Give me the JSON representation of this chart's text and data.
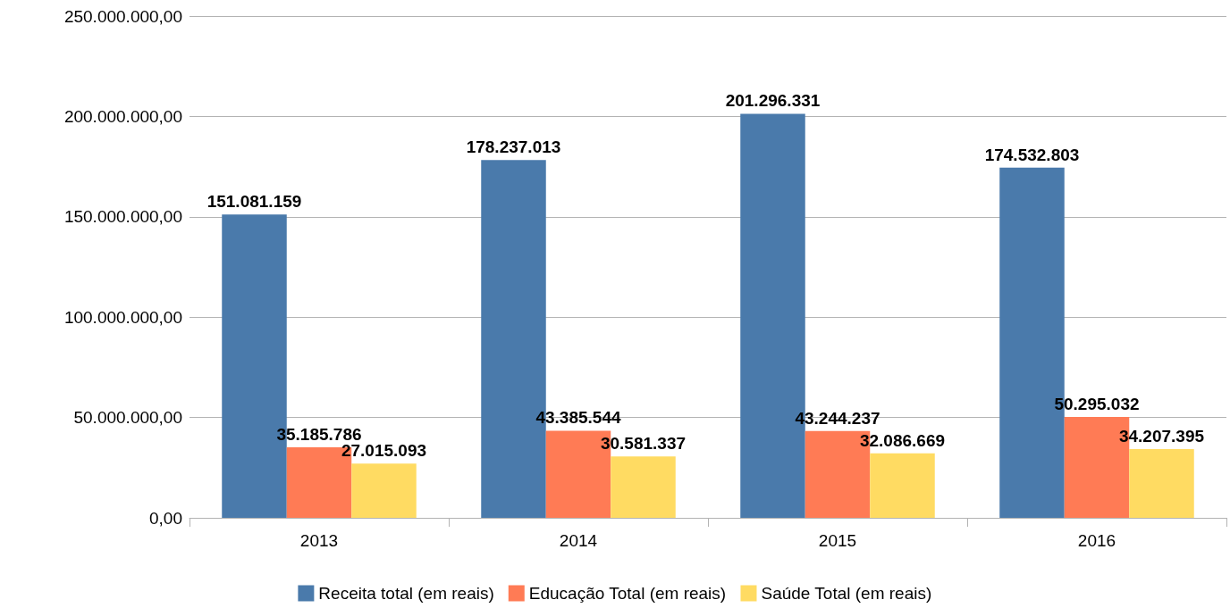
{
  "chart_data": {
    "type": "bar",
    "categories": [
      "2013",
      "2014",
      "2015",
      "2016"
    ],
    "series": [
      {
        "name": "Receita total (em reais)",
        "color": "#4a7aab",
        "values": [
          151081159,
          178237013,
          201296331,
          174532803
        ],
        "value_labels": [
          "151.081.159",
          "178.237.013",
          "201.296.331",
          "174.532.803"
        ]
      },
      {
        "name": "Educação Total (em reais)",
        "color": "#ff7b55",
        "values": [
          35185786,
          43385544,
          43244237,
          50295032
        ],
        "value_labels": [
          "35.185.786",
          "43.385.544",
          "43.244.237",
          "50.295.032"
        ]
      },
      {
        "name": "Saúde Total (em reais)",
        "color": "#ffdb62",
        "values": [
          27015093,
          30581337,
          32086669,
          34207395
        ],
        "value_labels": [
          "27.015.093",
          "30.581.337",
          "32.086.669",
          "34.207.395"
        ]
      }
    ],
    "ylim": [
      0,
      250000000
    ],
    "yticks": [
      {
        "value": 0,
        "label": "0,00"
      },
      {
        "value": 50000000,
        "label": "50.000.000,00"
      },
      {
        "value": 100000000,
        "label": "100.000.000,00"
      },
      {
        "value": 150000000,
        "label": "150.000.000,00"
      },
      {
        "value": 200000000,
        "label": "200.000.000,00"
      },
      {
        "value": 250000000,
        "label": "250.000.000,00"
      }
    ],
    "grid": "y",
    "legend": "bottom"
  }
}
